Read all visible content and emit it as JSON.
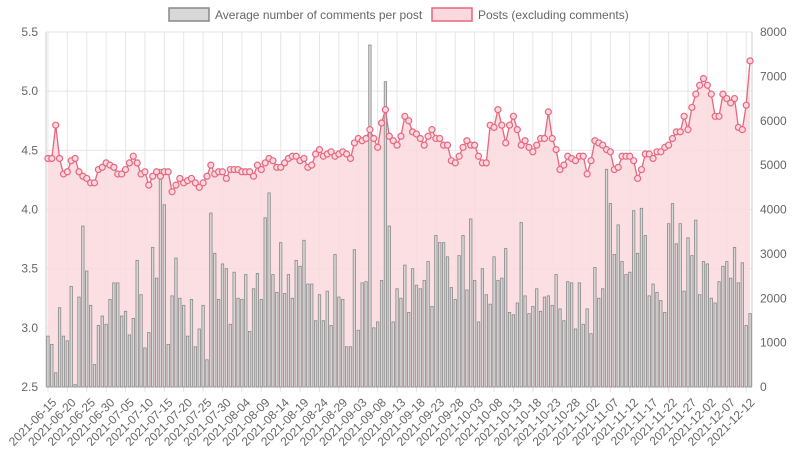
{
  "colors": {
    "bar_fill": "#d8d8d8",
    "bar_stroke": "#888888",
    "line_stroke": "#e8667f",
    "line_fill": "#fbd9de",
    "grid": "#e6e6e6",
    "tick_text": "#666666"
  },
  "chart_data": {
    "type": "bar",
    "title": "",
    "legend": [
      {
        "label": "Average number of comments per post",
        "kind": "bar",
        "axis": "left"
      },
      {
        "label": "Posts (excluding comments)",
        "kind": "line",
        "axis": "right"
      }
    ],
    "legend_position": "top-center",
    "x_start_date": "2021-06-15",
    "x_end_date": "2021-12-14",
    "x_tick_labels": [
      "2021-06-15",
      "2021-06-20",
      "2021-06-25",
      "2021-06-30",
      "2021-07-05",
      "2021-07-10",
      "2021-07-15",
      "2021-07-20",
      "2021-07-25",
      "2021-07-30",
      "2021-08-04",
      "2021-08-09",
      "2021-08-14",
      "2021-08-19",
      "2021-08-24",
      "2021-08-29",
      "2021-09-03",
      "2021-09-08",
      "2021-09-13",
      "2021-09-18",
      "2021-09-23",
      "2021-09-28",
      "2021-10-03",
      "2021-10-08",
      "2021-10-13",
      "2021-10-18",
      "2021-10-23",
      "2021-10-28",
      "2021-11-02",
      "2021-11-07",
      "2021-11-12",
      "2021-11-17",
      "2021-11-22",
      "2021-11-27",
      "2021-12-02",
      "2021-12-07",
      "2021-12-12"
    ],
    "y_left": {
      "min": 2.5,
      "max": 5.5,
      "ticks": [
        "2.5",
        "3.0",
        "3.5",
        "4.0",
        "4.5",
        "5.0",
        "5.5"
      ]
    },
    "y_right": {
      "min": 0,
      "max": 8000,
      "ticks": [
        "0",
        "1000",
        "2000",
        "3000",
        "4000",
        "5000",
        "6000",
        "7000",
        "8000"
      ]
    },
    "grid": true,
    "comments_per_post": [
      2.93,
      2.86,
      2.62,
      3.17,
      2.93,
      2.89,
      3.35,
      2.52,
      3.26,
      3.86,
      3.48,
      3.19,
      2.69,
      3.02,
      3.1,
      3.03,
      3.24,
      3.38,
      3.38,
      3.1,
      3.14,
      2.94,
      3.08,
      3.57,
      3.28,
      2.83,
      2.96,
      3.68,
      3.42,
      4.34,
      4.04,
      2.86,
      3.27,
      3.59,
      3.25,
      3.19,
      2.93,
      3.24,
      2.84,
      2.99,
      3.19,
      2.73,
      3.97,
      3.63,
      3.24,
      3.54,
      3.5,
      3.03,
      3.47,
      3.25,
      3.24,
      3.45,
      2.97,
      3.33,
      3.46,
      3.24,
      3.93,
      4.14,
      3.45,
      3.3,
      3.72,
      3.29,
      3.45,
      3.25,
      3.57,
      3.52,
      3.74,
      3.37,
      3.37,
      3.06,
      3.28,
      3.06,
      3.31,
      3.02,
      3.62,
      3.26,
      3.24,
      2.84,
      2.84,
      3.66,
      2.98,
      3.38,
      3.39,
      5.39,
      3.0,
      3.05,
      3.4,
      5.08,
      3.86,
      3.05,
      3.33,
      3.25,
      3.53,
      3.13,
      3.5,
      3.36,
      3.33,
      3.4,
      3.56,
      3.18,
      3.78,
      3.72,
      3.72,
      3.6,
      3.34,
      3.24,
      3.61,
      3.78,
      3.32,
      3.92,
      3.4,
      3.05,
      3.5,
      3.28,
      3.2,
      3.6,
      3.4,
      3.42,
      3.67,
      3.13,
      3.11,
      3.21,
      3.89,
      3.27,
      3.12,
      3.18,
      3.33,
      3.14,
      3.26,
      3.27,
      3.19,
      3.45,
      3.16,
      3.06,
      3.39,
      3.38,
      2.99,
      3.38,
      3.03,
      3.16,
      2.95,
      3.51,
      3.25,
      3.33,
      4.34,
      4.05,
      3.62,
      3.87,
      3.56,
      3.45,
      3.47,
      3.99,
      3.63,
      4.01,
      3.78,
      3.27,
      3.37,
      3.3,
      3.23,
      3.13,
      3.88,
      4.05,
      3.71,
      3.88,
      3.31,
      3.76,
      3.61,
      3.91,
      3.28,
      3.56,
      3.54,
      3.25,
      3.21,
      3.39,
      3.52,
      3.56,
      3.42,
      3.68,
      3.38,
      3.55,
      3.02,
      3.12
    ],
    "posts_excluding_comments": [
      5150,
      5150,
      5900,
      5150,
      4800,
      4850,
      5100,
      5150,
      4850,
      4750,
      4700,
      4600,
      4600,
      4900,
      4950,
      5050,
      5000,
      4950,
      4800,
      4800,
      4900,
      5050,
      5200,
      5050,
      4800,
      4850,
      4550,
      4750,
      4850,
      4750,
      4850,
      4850,
      4400,
      4550,
      4700,
      4600,
      4650,
      4700,
      4600,
      4500,
      4600,
      4750,
      5000,
      4800,
      4850,
      4850,
      4700,
      4900,
      4900,
      4900,
      4850,
      4850,
      4850,
      4750,
      5000,
      4900,
      5050,
      5150,
      5100,
      4950,
      4950,
      5050,
      5150,
      5200,
      5200,
      5100,
      5150,
      4950,
      5000,
      5250,
      5350,
      5200,
      5250,
      5300,
      5200,
      5250,
      5300,
      5250,
      5150,
      5500,
      5600,
      5550,
      5600,
      5800,
      5600,
      5400,
      5950,
      6250,
      5650,
      5550,
      5450,
      5650,
      6100,
      6000,
      5750,
      5700,
      5600,
      5450,
      5650,
      5800,
      5600,
      5600,
      5450,
      5450,
      5100,
      5050,
      5200,
      5400,
      5550,
      5450,
      5450,
      5200,
      5050,
      5050,
      5900,
      5850,
      6250,
      5900,
      5500,
      5900,
      6100,
      5800,
      5450,
      5550,
      5400,
      5300,
      5450,
      5600,
      5600,
      6200,
      5600,
      5350,
      4900,
      5000,
      5200,
      5150,
      5100,
      5200,
      5200,
      4800,
      5100,
      5550,
      5500,
      5450,
      5350,
      5300,
      4900,
      4950,
      5200,
      5200,
      5200,
      5100,
      4700,
      4900,
      5250,
      5250,
      5150,
      5300,
      5300,
      5400,
      5450,
      5600,
      5750,
      5750,
      6100,
      5800,
      6300,
      6600,
      6800,
      6950,
      6800,
      6600,
      6100,
      6100,
      6600,
      6500,
      6400,
      6500,
      5850,
      5800,
      6350,
      7350
    ]
  }
}
